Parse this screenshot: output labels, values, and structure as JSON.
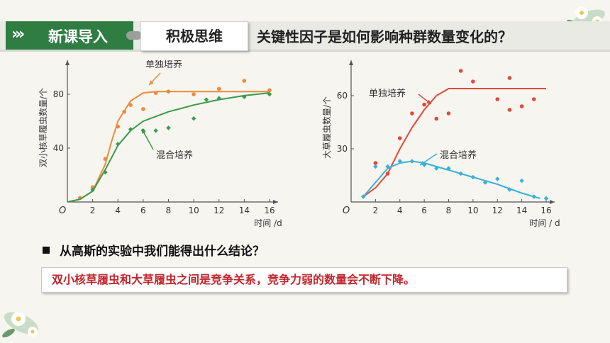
{
  "header": {
    "section_label": "新课导入",
    "tab_label": "积极思维",
    "title": "关键性因子是如何影响种群数量变化的？"
  },
  "question": "从高斯的实验中我们能得出什么结论？",
  "answer": "双小核草履虫和大草履虫之间是竞争关系，竞争力弱的数量会不断下降。",
  "colors": {
    "accent_green": "#2f7d43",
    "alone_curve": "#f08a3a",
    "mixed_curve": "#3a9a4a",
    "alone_curve_2": "#e04a3a",
    "mixed_curve_2": "#3ab0d8",
    "answer_text": "#c0262c"
  },
  "chart_data": [
    {
      "type": "scatter",
      "ylabel": "双小核草履虫数量/个",
      "xlabel": "时间 /d",
      "origin_label": "O",
      "xlim": [
        0,
        16
      ],
      "ylim": [
        0,
        100
      ],
      "x_ticks": [
        2,
        4,
        6,
        8,
        10,
        12,
        14,
        16
      ],
      "y_ticks": [
        40,
        80
      ],
      "grid": false,
      "series": [
        {
          "name": "单独培养",
          "curve": [
            [
              0,
              0
            ],
            [
              1,
              2
            ],
            [
              2,
              8
            ],
            [
              3,
              28
            ],
            [
              3.5,
              45
            ],
            [
              4,
              60
            ],
            [
              5,
              75
            ],
            [
              6,
              81
            ],
            [
              7,
              82
            ],
            [
              16,
              82
            ]
          ],
          "points": [
            [
              1,
              3
            ],
            [
              2,
              11
            ],
            [
              3,
              32
            ],
            [
              4,
              56
            ],
            [
              4.5,
              67
            ],
            [
              5,
              72
            ],
            [
              6,
              69
            ],
            [
              7,
              81
            ],
            [
              8,
              82
            ],
            [
              10,
              80
            ],
            [
              12,
              84
            ],
            [
              14,
              90
            ],
            [
              16,
              83
            ]
          ]
        },
        {
          "name": "混合培养",
          "curve": [
            [
              0,
              0
            ],
            [
              1,
              2
            ],
            [
              2,
              8
            ],
            [
              3,
              24
            ],
            [
              4,
              42
            ],
            [
              5,
              53
            ],
            [
              6,
              60
            ],
            [
              8,
              67
            ],
            [
              10,
              72
            ],
            [
              12,
              76
            ],
            [
              14,
              79
            ],
            [
              16,
              81
            ]
          ],
          "points": [
            [
              2,
              9
            ],
            [
              3,
              22
            ],
            [
              4,
              43
            ],
            [
              5,
              54
            ],
            [
              6,
              53
            ],
            [
              7,
              53
            ],
            [
              8,
              55
            ],
            [
              10,
              62
            ],
            [
              11,
              76
            ],
            [
              12,
              77
            ],
            [
              14,
              78
            ],
            [
              16,
              80
            ]
          ]
        }
      ]
    },
    {
      "type": "scatter",
      "ylabel": "大草履虫数量/个",
      "xlabel": "时间 / d",
      "origin_label": "O",
      "xlim": [
        0,
        16
      ],
      "ylim": [
        0,
        76
      ],
      "x_ticks": [
        2,
        4,
        6,
        8,
        10,
        12,
        14,
        16
      ],
      "y_ticks": [
        30,
        60
      ],
      "grid": false,
      "series": [
        {
          "name": "单独培养",
          "curve": [
            [
              1,
              3
            ],
            [
              2,
              8
            ],
            [
              3,
              16
            ],
            [
              4,
              30
            ],
            [
              5,
              42
            ],
            [
              6,
              52
            ],
            [
              7,
              60
            ],
            [
              8,
              64
            ],
            [
              16,
              64
            ]
          ],
          "points": [
            [
              2,
              22
            ],
            [
              3,
              16
            ],
            [
              4,
              36
            ],
            [
              5,
              50
            ],
            [
              6,
              55
            ],
            [
              7,
              47
            ],
            [
              8,
              50
            ],
            [
              9,
              74
            ],
            [
              10,
              68
            ],
            [
              12,
              58
            ],
            [
              13,
              70
            ],
            [
              13,
              52
            ],
            [
              14,
              54
            ],
            [
              15,
              58
            ]
          ]
        },
        {
          "name": "混合培养",
          "curve": [
            [
              1,
              3
            ],
            [
              2,
              11
            ],
            [
              3,
              19
            ],
            [
              4,
              22
            ],
            [
              5,
              23
            ],
            [
              6,
              22
            ],
            [
              7,
              20
            ],
            [
              8,
              18
            ],
            [
              10,
              14
            ],
            [
              12,
              10
            ],
            [
              14,
              5
            ],
            [
              15.5,
              2
            ]
          ],
          "points": [
            [
              1,
              3
            ],
            [
              2,
              20
            ],
            [
              3,
              20
            ],
            [
              4,
              23
            ],
            [
              5,
              23
            ],
            [
              6,
              21
            ],
            [
              7,
              19
            ],
            [
              8,
              19
            ],
            [
              9,
              16
            ],
            [
              10,
              14
            ],
            [
              11,
              11
            ],
            [
              12,
              13
            ],
            [
              13,
              7
            ],
            [
              14,
              12
            ],
            [
              15,
              3
            ],
            [
              16,
              2
            ]
          ]
        }
      ]
    }
  ]
}
